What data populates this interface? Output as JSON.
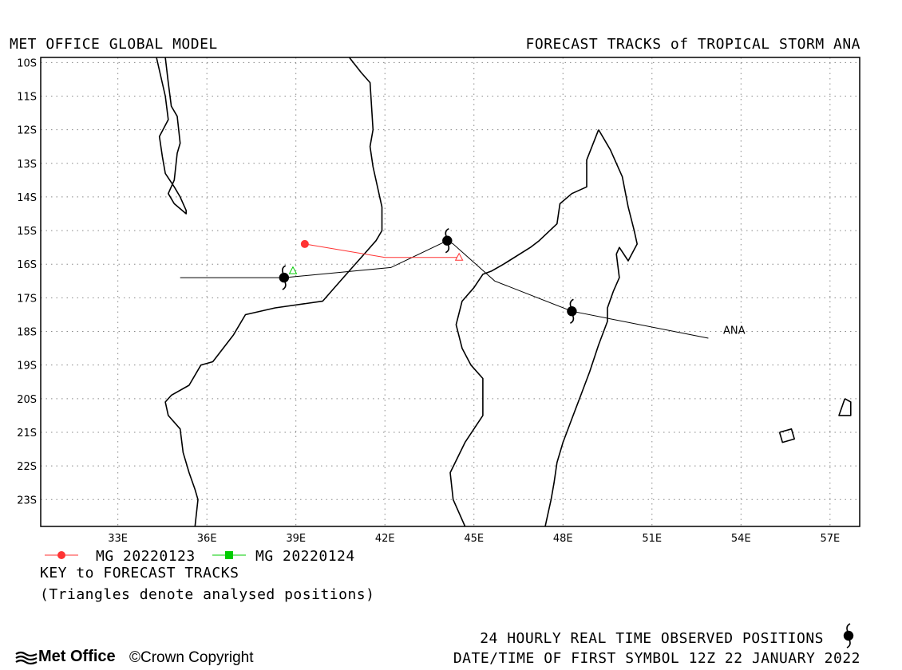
{
  "header": {
    "left_title": "MET OFFICE GLOBAL MODEL",
    "right_title": "FORECAST TRACKS of TROPICAL STORM ANA"
  },
  "map": {
    "lon_range": [
      30.4,
      58.0
    ],
    "lat_range": [
      -23.8,
      -9.85
    ],
    "lon_ticks": [
      33,
      36,
      39,
      42,
      45,
      48,
      51,
      54,
      57
    ],
    "lon_tick_labels": [
      "33E",
      "36E",
      "39E",
      "42E",
      "45E",
      "48E",
      "51E",
      "54E",
      "57E"
    ],
    "lat_ticks": [
      -10,
      -11,
      -12,
      -13,
      -14,
      -15,
      -16,
      -17,
      -18,
      -19,
      -20,
      -21,
      -22,
      -23
    ],
    "lat_tick_labels": [
      "10S",
      "11S",
      "12S",
      "13S",
      "14S",
      "15S",
      "16S",
      "17S",
      "18S",
      "19S",
      "20S",
      "21S",
      "22S",
      "23S"
    ],
    "grid": true,
    "colors": {
      "frame": "#000000",
      "grid": "#888888",
      "coast": "#000000"
    }
  },
  "tracks": [
    {
      "name": "MG 20220123",
      "color": "#ff3333",
      "start_marker": "circle",
      "analysed_marker": "triangle",
      "points": [
        [
          39.3,
          -15.4
        ],
        [
          42.0,
          -15.8
        ],
        [
          44.5,
          -15.8
        ]
      ],
      "analysed_position": [
        44.5,
        -15.8
      ]
    },
    {
      "name": "MG 20220124",
      "color": "#00cc00",
      "start_marker": "square",
      "analysed_marker": "triangle",
      "points": [],
      "analysed_position": [
        38.9,
        -16.2
      ]
    }
  ],
  "observed_track": {
    "color": "#000000",
    "points": [
      [
        35.1,
        -16.4
      ],
      [
        38.6,
        -16.4
      ],
      [
        42.2,
        -16.1
      ],
      [
        44.1,
        -15.3
      ],
      [
        44.3,
        -15.4
      ],
      [
        45.7,
        -16.5
      ],
      [
        48.3,
        -17.4
      ],
      [
        52.9,
        -18.2
      ]
    ],
    "storm_symbol_positions": [
      [
        38.6,
        -16.4
      ],
      [
        44.1,
        -15.3
      ],
      [
        48.3,
        -17.4
      ]
    ],
    "label": "ANA",
    "label_position": [
      53.4,
      -17.95
    ]
  },
  "coastlines": {
    "africa_coast": [
      [
        40.8,
        -9.85
      ],
      [
        41.2,
        -10.3
      ],
      [
        41.5,
        -10.6
      ],
      [
        41.6,
        -12.0
      ],
      [
        41.5,
        -12.5
      ],
      [
        41.6,
        -13.1
      ],
      [
        41.9,
        -14.3
      ],
      [
        41.9,
        -15.0
      ],
      [
        41.7,
        -15.3
      ],
      [
        41.3,
        -15.7
      ],
      [
        40.9,
        -16.1
      ],
      [
        40.4,
        -16.6
      ],
      [
        39.9,
        -17.1
      ],
      [
        38.3,
        -17.3
      ],
      [
        37.3,
        -17.5
      ],
      [
        36.9,
        -18.1
      ],
      [
        36.2,
        -18.9
      ],
      [
        35.8,
        -19.0
      ],
      [
        35.4,
        -19.6
      ],
      [
        34.8,
        -19.9
      ],
      [
        34.6,
        -20.1
      ],
      [
        34.7,
        -20.5
      ],
      [
        35.1,
        -20.9
      ],
      [
        35.2,
        -21.6
      ],
      [
        35.4,
        -22.2
      ],
      [
        35.6,
        -22.7
      ],
      [
        35.7,
        -23.0
      ],
      [
        35.6,
        -23.8
      ]
    ],
    "lake_malawi": [
      [
        34.3,
        -9.85
      ],
      [
        34.6,
        -11.0
      ],
      [
        34.7,
        -11.7
      ],
      [
        34.4,
        -12.2
      ],
      [
        34.5,
        -12.8
      ],
      [
        34.6,
        -13.3
      ],
      [
        34.9,
        -13.7
      ],
      [
        35.1,
        -14.0
      ],
      [
        35.3,
        -14.4
      ],
      [
        35.3,
        -14.5
      ],
      [
        34.9,
        -14.2
      ],
      [
        34.7,
        -13.9
      ],
      [
        34.9,
        -13.5
      ],
      [
        35.0,
        -12.7
      ],
      [
        35.1,
        -12.4
      ],
      [
        35.0,
        -11.6
      ],
      [
        34.8,
        -11.3
      ],
      [
        34.7,
        -10.6
      ],
      [
        34.6,
        -9.85
      ]
    ],
    "madagascar": [
      [
        49.2,
        -12.0
      ],
      [
        49.6,
        -12.6
      ],
      [
        50.0,
        -13.4
      ],
      [
        50.2,
        -14.3
      ],
      [
        50.4,
        -15.0
      ],
      [
        50.5,
        -15.4
      ],
      [
        50.2,
        -15.9
      ],
      [
        49.9,
        -15.5
      ],
      [
        49.8,
        -15.7
      ],
      [
        49.9,
        -16.4
      ],
      [
        49.7,
        -16.8
      ],
      [
        49.5,
        -17.3
      ],
      [
        49.5,
        -17.7
      ],
      [
        49.2,
        -18.4
      ],
      [
        48.9,
        -19.2
      ],
      [
        48.6,
        -19.9
      ],
      [
        48.3,
        -20.6
      ],
      [
        48.0,
        -21.3
      ],
      [
        47.8,
        -21.9
      ],
      [
        47.7,
        -22.5
      ],
      [
        47.6,
        -23.0
      ],
      [
        47.5,
        -23.4
      ],
      [
        47.4,
        -23.8
      ],
      "BREAK",
      [
        44.7,
        -23.8
      ],
      [
        44.3,
        -23.0
      ],
      [
        44.2,
        -22.2
      ],
      [
        44.7,
        -21.3
      ],
      [
        45.3,
        -20.5
      ],
      [
        45.3,
        -19.4
      ],
      [
        44.9,
        -19.0
      ],
      [
        44.6,
        -18.5
      ],
      [
        44.4,
        -17.8
      ],
      [
        44.6,
        -17.1
      ],
      [
        45.0,
        -16.7
      ],
      [
        45.3,
        -16.3
      ],
      [
        45.6,
        -16.2
      ],
      [
        46.0,
        -16.0
      ],
      [
        46.9,
        -15.5
      ],
      [
        47.2,
        -15.3
      ],
      [
        47.8,
        -14.8
      ],
      [
        47.9,
        -14.2
      ],
      [
        48.3,
        -13.9
      ],
      [
        48.8,
        -13.7
      ],
      [
        48.8,
        -12.9
      ],
      [
        49.2,
        -12.0
      ]
    ],
    "reunion": [
      [
        55.3,
        -21.0
      ],
      [
        55.7,
        -20.9
      ],
      [
        55.8,
        -21.2
      ],
      [
        55.4,
        -21.3
      ],
      [
        55.3,
        -21.0
      ]
    ],
    "mauritius": [
      [
        57.5,
        -20.0
      ],
      [
        57.7,
        -20.1
      ],
      [
        57.7,
        -20.5
      ],
      [
        57.3,
        -20.5
      ],
      [
        57.5,
        -20.0
      ]
    ]
  },
  "key": {
    "title": "KEY to FORECAST TRACKS",
    "note": "(Triangles denote analysed positions)",
    "entries": [
      {
        "label": "MG 20220123",
        "color": "#ff3333",
        "marker": "circle"
      },
      {
        "label": "MG 20220124",
        "color": "#00cc00",
        "marker": "square"
      }
    ]
  },
  "footer": {
    "observed_text": "24 HOURLY REAL TIME OBSERVED POSITIONS",
    "datetime_text": "DATE/TIME OF FIRST SYMBOL 12Z 22 JANUARY 2022",
    "logo_text": "Met Office",
    "copyright_text": "Crown Copyright"
  }
}
